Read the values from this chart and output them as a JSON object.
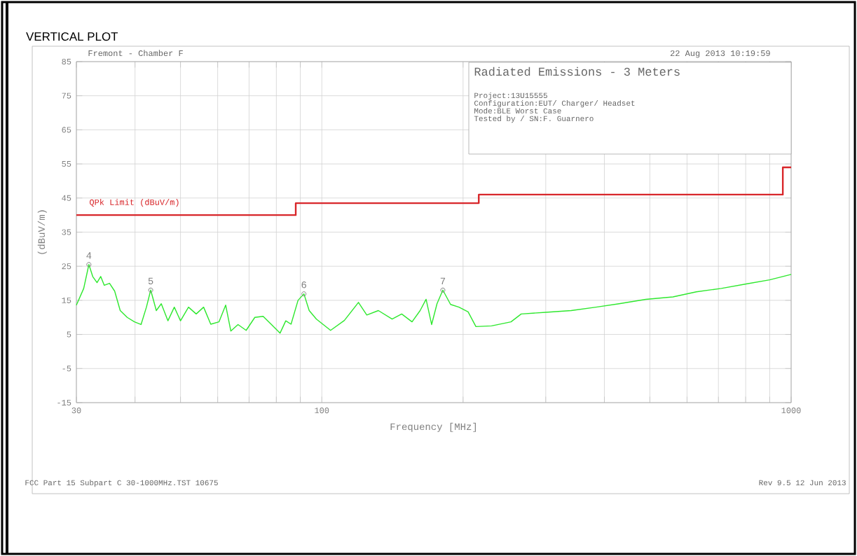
{
  "chart_data": {
    "type": "line",
    "title": "VERTICAL PLOT",
    "xlabel": "Frequency [MHz]",
    "ylabel": "(dBuV/m)",
    "log": "x",
    "xlim": [
      30,
      1000
    ],
    "ylim": [
      -15,
      85
    ],
    "xticks": [
      30,
      {
        "value": 40,
        "label": null
      },
      {
        "value": 50,
        "label": null
      },
      {
        "value": 60,
        "label": null
      },
      {
        "value": 70,
        "label": null
      },
      {
        "value": 80,
        "label": null
      },
      {
        "value": 90,
        "label": null
      },
      100,
      {
        "value": 200,
        "label": null
      },
      {
        "value": 300,
        "label": null
      },
      {
        "value": 400,
        "label": null
      },
      {
        "value": 500,
        "label": null
      },
      {
        "value": 600,
        "label": null
      },
      {
        "value": 700,
        "label": null
      },
      {
        "value": 800,
        "label": null
      },
      {
        "value": 900,
        "label": null
      },
      1000
    ],
    "yticks": [
      -15,
      -5,
      5,
      15,
      25,
      35,
      45,
      55,
      65,
      75,
      85
    ],
    "grid": true,
    "series": [
      {
        "name": "QPk Limit (dBuV/m)",
        "type": "step",
        "color": "#d8262a",
        "x": [
          30,
          88,
          216,
          960,
          1000
        ],
        "values": [
          40,
          43.5,
          46,
          54,
          54
        ]
      },
      {
        "color": "#2ee82e",
        "x": [
          30,
          31.1,
          31.9,
          32.5,
          33.2,
          33.8,
          34.4,
          35.3,
          36.2,
          37.2,
          38.5,
          39.9,
          41.2,
          42.3,
          43.2,
          44.4,
          45.5,
          47,
          48.5,
          50,
          52,
          54,
          56,
          58,
          60.4,
          62.4,
          64,
          66.3,
          69,
          72,
          75,
          78,
          81.5,
          83.8,
          86,
          89,
          91.6,
          94,
          97.4,
          104.4,
          111.7,
          119.7,
          124.7,
          132,
          141.2,
          148,
          155.7,
          162,
          166.8,
          171.4,
          176,
          181.1,
          188.1,
          196,
          205,
          213,
          230,
          253,
          266,
          300,
          340,
          384,
          430,
          490,
          560,
          628,
          710,
          802,
          900,
          1000
        ],
        "values": [
          13.6,
          18.5,
          25.5,
          22,
          20.2,
          22,
          19.4,
          20,
          17.7,
          12,
          10,
          8.7,
          7.9,
          13,
          18,
          12,
          14,
          9,
          13,
          9,
          13,
          11,
          13,
          8,
          8.7,
          13.6,
          6,
          7.9,
          6.2,
          10,
          10.3,
          8,
          5.4,
          9,
          8,
          15,
          16.9,
          12,
          9.5,
          6.2,
          9.1,
          14.4,
          10.7,
          12,
          9.5,
          11,
          8.7,
          12,
          15.3,
          7.9,
          14,
          18,
          13.8,
          13,
          11.6,
          7.3,
          7.5,
          8.7,
          11,
          11.5,
          12,
          13,
          14,
          15.3,
          16,
          17.5,
          18.5,
          19.8,
          21,
          22.6
        ]
      }
    ],
    "annotations": [
      "Fremont - Chamber F",
      "22 Aug 2013   10:19:59",
      "Radiated Emissions - 3 Meters",
      "Project:13U15555",
      "Configuration:EUT/ Charger/ Headset",
      "Mode:BLE Worst Case",
      "Tested by / SN:F. Guarnero",
      "FCC Part 15 Subpart C 30-1000MHz.TST 10675",
      "Rev 9.5 12 Jun 2013",
      {
        "text": "4",
        "x": 31.9,
        "y": 25.5
      },
      {
        "text": "5",
        "x": 43.2,
        "y": 18
      },
      {
        "text": "6",
        "x": 91.6,
        "y": 16.9
      },
      {
        "text": "7",
        "x": 181.1,
        "y": 18
      }
    ]
  }
}
